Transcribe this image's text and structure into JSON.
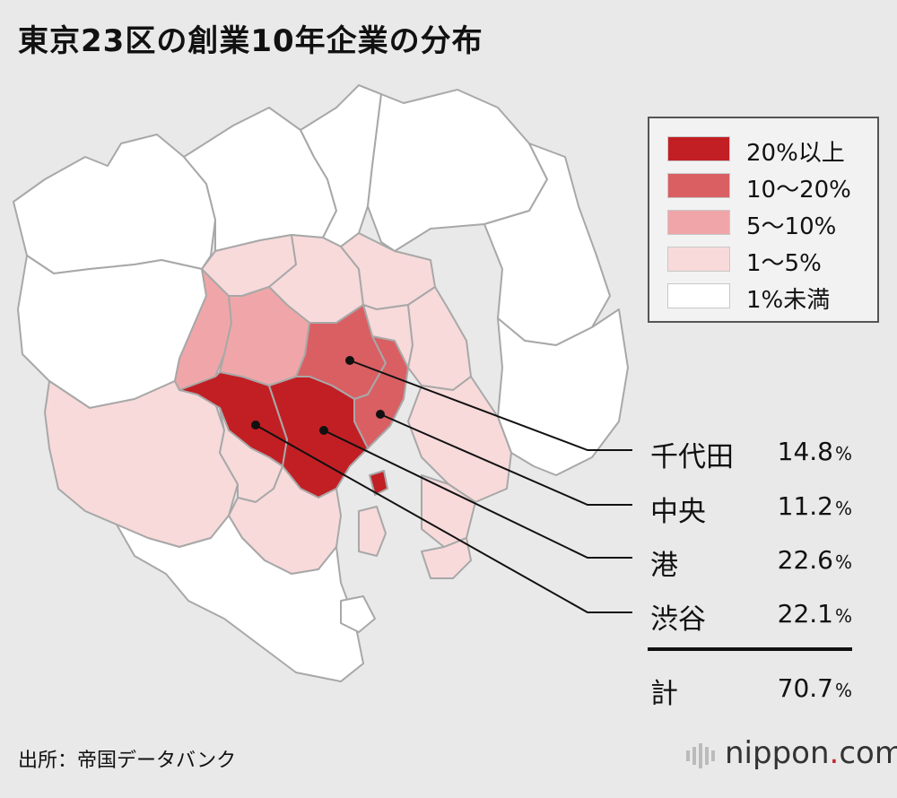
{
  "title": "東京23区の創業10年企業の分布",
  "colors": {
    "background": "#e9e9e9",
    "ward_border": "#a8a8a8",
    "tier_20_plus": "#c21f24",
    "tier_10_20": "#d95f63",
    "tier_5_10": "#f0a6a8",
    "tier_1_5": "#f8dadb",
    "tier_under_1": "#ffffff"
  },
  "legend": [
    {
      "label": "20%以上",
      "color": "#c21f24"
    },
    {
      "label": "10〜20%",
      "color": "#d95f63"
    },
    {
      "label": "5〜10%",
      "color": "#f0a6a8"
    },
    {
      "label": "1〜5%",
      "color": "#f8dadb"
    },
    {
      "label": "1%未満",
      "color": "#ffffff"
    }
  ],
  "wards": [
    {
      "name": "千代田",
      "value": "14.8",
      "unit": "%"
    },
    {
      "name": "中央",
      "value": "11.2",
      "unit": "%"
    },
    {
      "name": "港",
      "value": "22.6",
      "unit": "%"
    },
    {
      "name": "渋谷",
      "value": "22.1",
      "unit": "%"
    }
  ],
  "total": {
    "name": "計",
    "value": "70.7",
    "unit": "%"
  },
  "source": "出所：帝国データバンク",
  "brand": {
    "prefix": "nippon",
    "dot": ".",
    "suffix": "com"
  }
}
